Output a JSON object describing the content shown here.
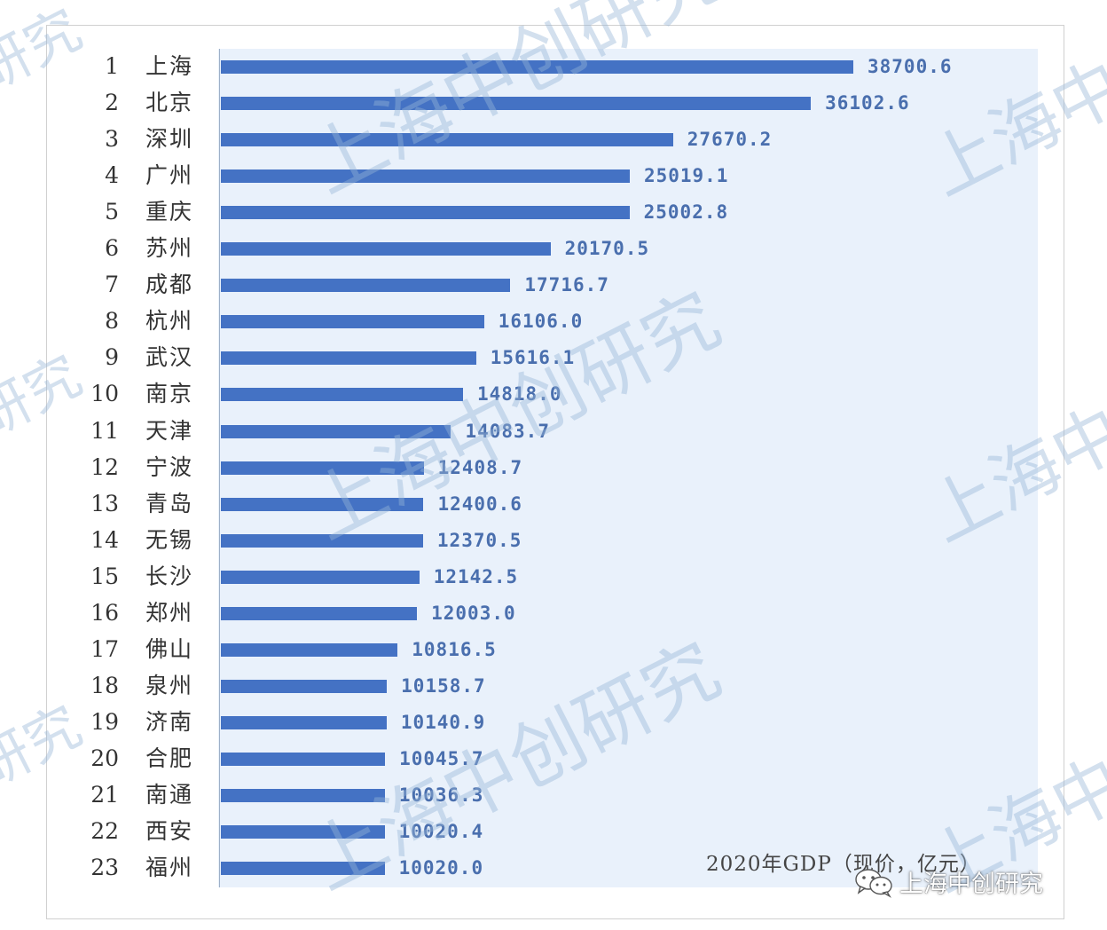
{
  "chart_data": {
    "type": "bar",
    "orientation": "horizontal",
    "title": "2020年GDP（现价，亿元）",
    "ranks": [
      "1",
      "2",
      "3",
      "4",
      "5",
      "6",
      "7",
      "8",
      "9",
      "10",
      "11",
      "12",
      "13",
      "14",
      "15",
      "16",
      "17",
      "18",
      "19",
      "20",
      "21",
      "22",
      "23"
    ],
    "categories": [
      "上海",
      "北京",
      "深圳",
      "广州",
      "重庆",
      "苏州",
      "成都",
      "杭州",
      "武汉",
      "南京",
      "天津",
      "宁波",
      "青岛",
      "无锡",
      "长沙",
      "郑州",
      "佛山",
      "泉州",
      "济南",
      "合肥",
      "南通",
      "西安",
      "福州"
    ],
    "values": [
      38700.6,
      36102.6,
      27670.2,
      25019.1,
      25002.8,
      20170.5,
      17716.7,
      16106.0,
      15616.1,
      14818.0,
      14083.7,
      12408.7,
      12400.6,
      12370.5,
      12142.5,
      12003.0,
      10816.5,
      10158.7,
      10140.9,
      10045.7,
      10036.3,
      10020.4,
      10020.0
    ],
    "value_labels": [
      "38700.6",
      "36102.6",
      "27670.2",
      "25019.1",
      "25002.8",
      "20170.5",
      "17716.7",
      "16106.0",
      "15616.1",
      "14818.0",
      "14083.7",
      "12408.7",
      "12400.6",
      "12370.5",
      "12142.5",
      "12003.0",
      "10816.5",
      "10158.7",
      "10140.9",
      "10045.7",
      "10036.3",
      "10020.4",
      "10020.0"
    ],
    "xlim": [
      0,
      50000
    ],
    "grid": false,
    "bar_color": "#4472c4",
    "label_color": "#4a6fae",
    "plot_background": "#e9f1fb"
  },
  "watermark": {
    "text": "上海中创研究",
    "short": "上海中",
    "partial": "研究",
    "color": "#96b4d7"
  },
  "brand": {
    "icon": "wechat-icon",
    "text": "上海中创研究"
  }
}
